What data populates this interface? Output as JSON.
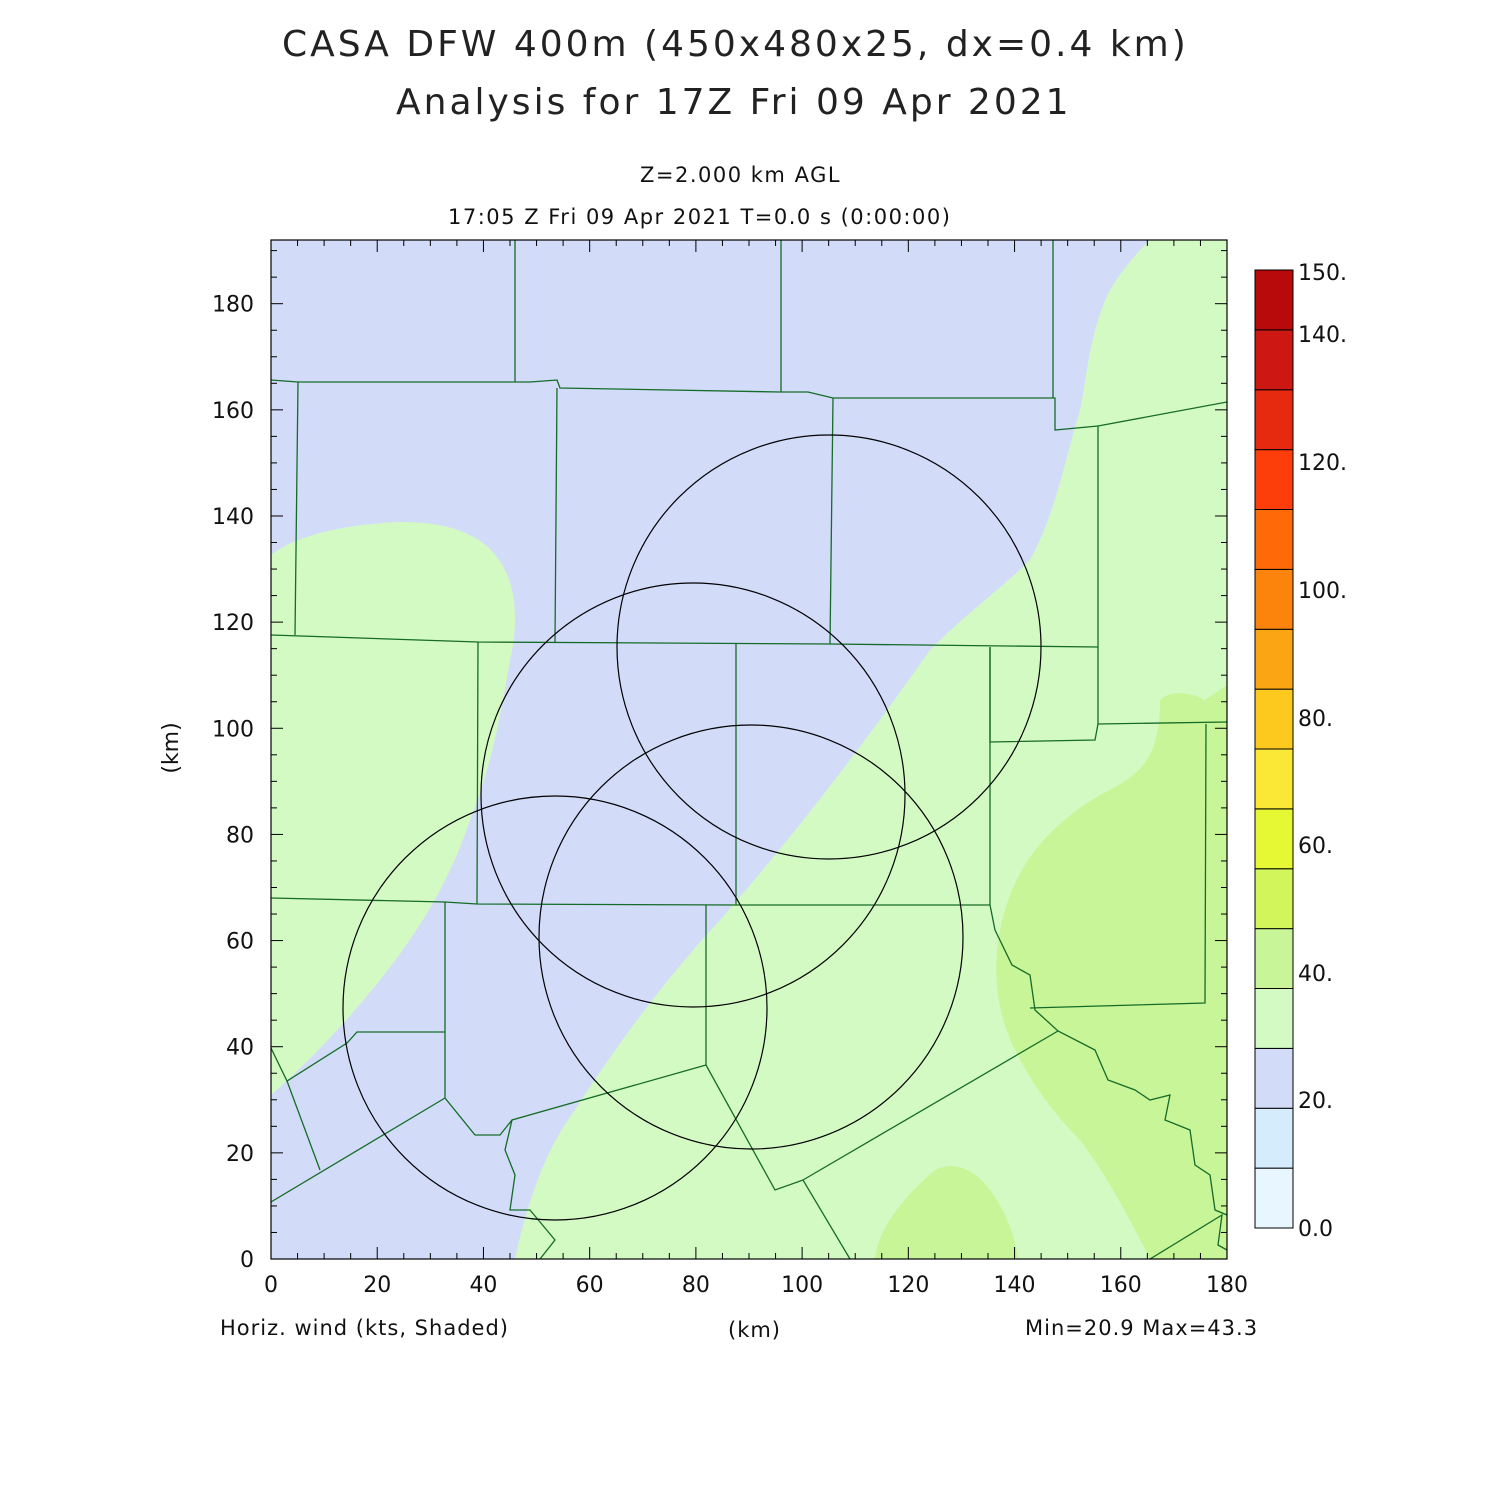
{
  "header": {
    "title_line1": "CASA DFW 400m (450x480x25, dx=0.4 km)",
    "title_line2": "Analysis for 17Z Fri 09 Apr 2021",
    "level": "Z=2.000 km AGL",
    "time": "17:05 Z Fri 09 Apr 2021    T=0.0 s (0:00:00)"
  },
  "axes": {
    "x_label": "(km)",
    "y_label": "(km)",
    "x_ticks": [
      "0",
      "20",
      "40",
      "60",
      "80",
      "100",
      "120",
      "140",
      "160",
      "180"
    ],
    "y_ticks": [
      "0",
      "20",
      "40",
      "60",
      "80",
      "100",
      "120",
      "140",
      "160",
      "180"
    ],
    "x_range": [
      0,
      180
    ],
    "y_range": [
      0,
      192
    ]
  },
  "footer": {
    "field": "Horiz. wind (kts, Shaded)",
    "units": "(km)",
    "minmax": "Min=20.9 Max=43.3"
  },
  "colorbar": {
    "labels": [
      "150.",
      "140.",
      "120.",
      "100.",
      "80.",
      "60.",
      "40.",
      "20.",
      "0.0"
    ],
    "colors": [
      "#e8f6ff",
      "#d4ecfb",
      "#d2dcf9",
      "#d4fac4",
      "#c8f598",
      "#d2f55c",
      "#e6f733",
      "#fbe836",
      "#fdc91f",
      "#fca514",
      "#fc840d",
      "#fd6a07",
      "#fe3e0a",
      "#e62a0f",
      "#cc1712",
      "#b80a0a"
    ]
  },
  "map_colors": {
    "low": "#d2dcf9",
    "mid": "#d4fac4",
    "high": "#c8f598",
    "county_lines": "#156b27",
    "radar_rings": "#000000"
  }
}
